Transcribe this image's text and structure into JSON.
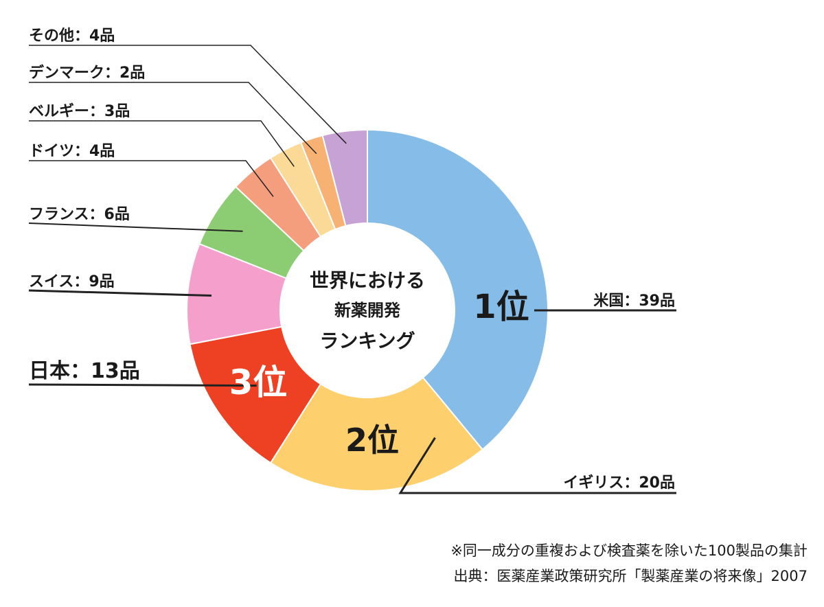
{
  "chart_data": {
    "type": "pie",
    "center_title_lines": [
      "世界における",
      "新薬開発",
      "ランキング"
    ],
    "slices": [
      {
        "label": "米国：39品",
        "value": 39,
        "color": "#85bde8",
        "rank_label": "1位"
      },
      {
        "label": "イギリス：20品",
        "value": 20,
        "color": "#fdd06d",
        "rank_label": "2位"
      },
      {
        "label": "日本：13品",
        "value": 13,
        "color": "#ee4124",
        "rank_label": "3位"
      },
      {
        "label": "スイス：9品",
        "value": 9,
        "color": "#f5a0cc"
      },
      {
        "label": "フランス：6品",
        "value": 6,
        "color": "#8ccc73"
      },
      {
        "label": "ドイツ：4品",
        "value": 4,
        "color": "#f59e7e"
      },
      {
        "label": "ベルギー：3品",
        "value": 3,
        "color": "#fbd996"
      },
      {
        "label": "デンマーク：2品",
        "value": 2,
        "color": "#f7b172"
      },
      {
        "label": "その他：4品",
        "value": 4,
        "color": "#c7a2d4"
      }
    ]
  },
  "notes": {
    "line1": "※同一成分の重複および検査薬を除いた100製品の集計",
    "line2": "出典：医薬産業政策研究所「製薬産業の将来像」2007"
  }
}
